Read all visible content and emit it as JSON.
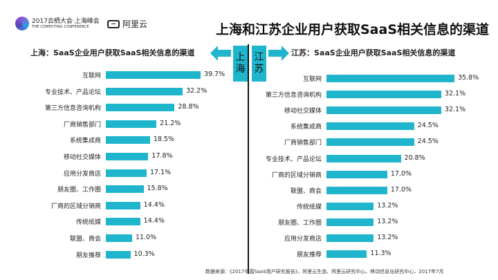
{
  "header": {
    "conference_logo_line1": "2017云栖大会·上海峰会",
    "conference_logo_line2": "THE COMPUTING CONFERENCE",
    "aliyun_logo": "阿里云",
    "title": "上海和江苏企业用户获取SaaS相关信息的渠道"
  },
  "center": {
    "left_label": "上\n海",
    "right_label": "江\n苏"
  },
  "colors": {
    "bar": "#1fb5cc",
    "accent": "#1fb5cc"
  },
  "footer": {
    "source": "数据来源：《2017中国SaaS用户研究报告》，阿里云生态、阿里云研究中心、移动信息化研究中心，2017年7月"
  },
  "chart_data": [
    {
      "type": "bar",
      "orientation": "horizontal",
      "title": "上海：SaaS企业用户获取SaaS相关信息的渠道",
      "categories": [
        "互联网",
        "专业技术、产品论坛",
        "第三方信息咨询机构",
        "厂商销售部门",
        "系统集成商",
        "移动社交媒体",
        "应用分发商店",
        "朋友圈、工作圈",
        "厂商的区域分销商",
        "传统纸媒",
        "联盟、商会",
        "朋友推荐"
      ],
      "values": [
        39.7,
        32.2,
        28.8,
        21.2,
        18.5,
        17.8,
        17.1,
        15.8,
        14.4,
        14.4,
        11.0,
        10.3
      ],
      "value_labels": [
        "39.7%",
        "32.2%",
        "28.8%",
        "21.2%",
        "18.5%",
        "17.8%",
        "17.1%",
        "15.8%",
        "14.4%",
        "14.4%",
        "11.0%",
        "10.3%"
      ],
      "unit": "%"
    },
    {
      "type": "bar",
      "orientation": "horizontal",
      "title": "江苏：SaaS企业用户获取SaaS相关信息的渠道",
      "categories": [
        "互联网",
        "第三方信息咨询机构",
        "移动社交媒体",
        "系统集成商",
        "厂商销售部门",
        "专业技术、产品论坛",
        "厂商的区域分销商",
        "联盟、商会",
        "传统纸媒",
        "朋友圈、工作圈",
        "应用分发商店",
        "朋友推荐"
      ],
      "values": [
        35.8,
        32.1,
        32.1,
        24.5,
        24.5,
        20.8,
        17.0,
        17.0,
        13.2,
        13.2,
        13.2,
        11.3
      ],
      "value_labels": [
        "35.8%",
        "32.1%",
        "32.1%",
        "24.5%",
        "24.5%",
        "20.8%",
        "17.0%",
        "17.0%",
        "13.2%",
        "13.2%",
        "13.2%",
        "11.3%"
      ],
      "unit": "%"
    }
  ]
}
